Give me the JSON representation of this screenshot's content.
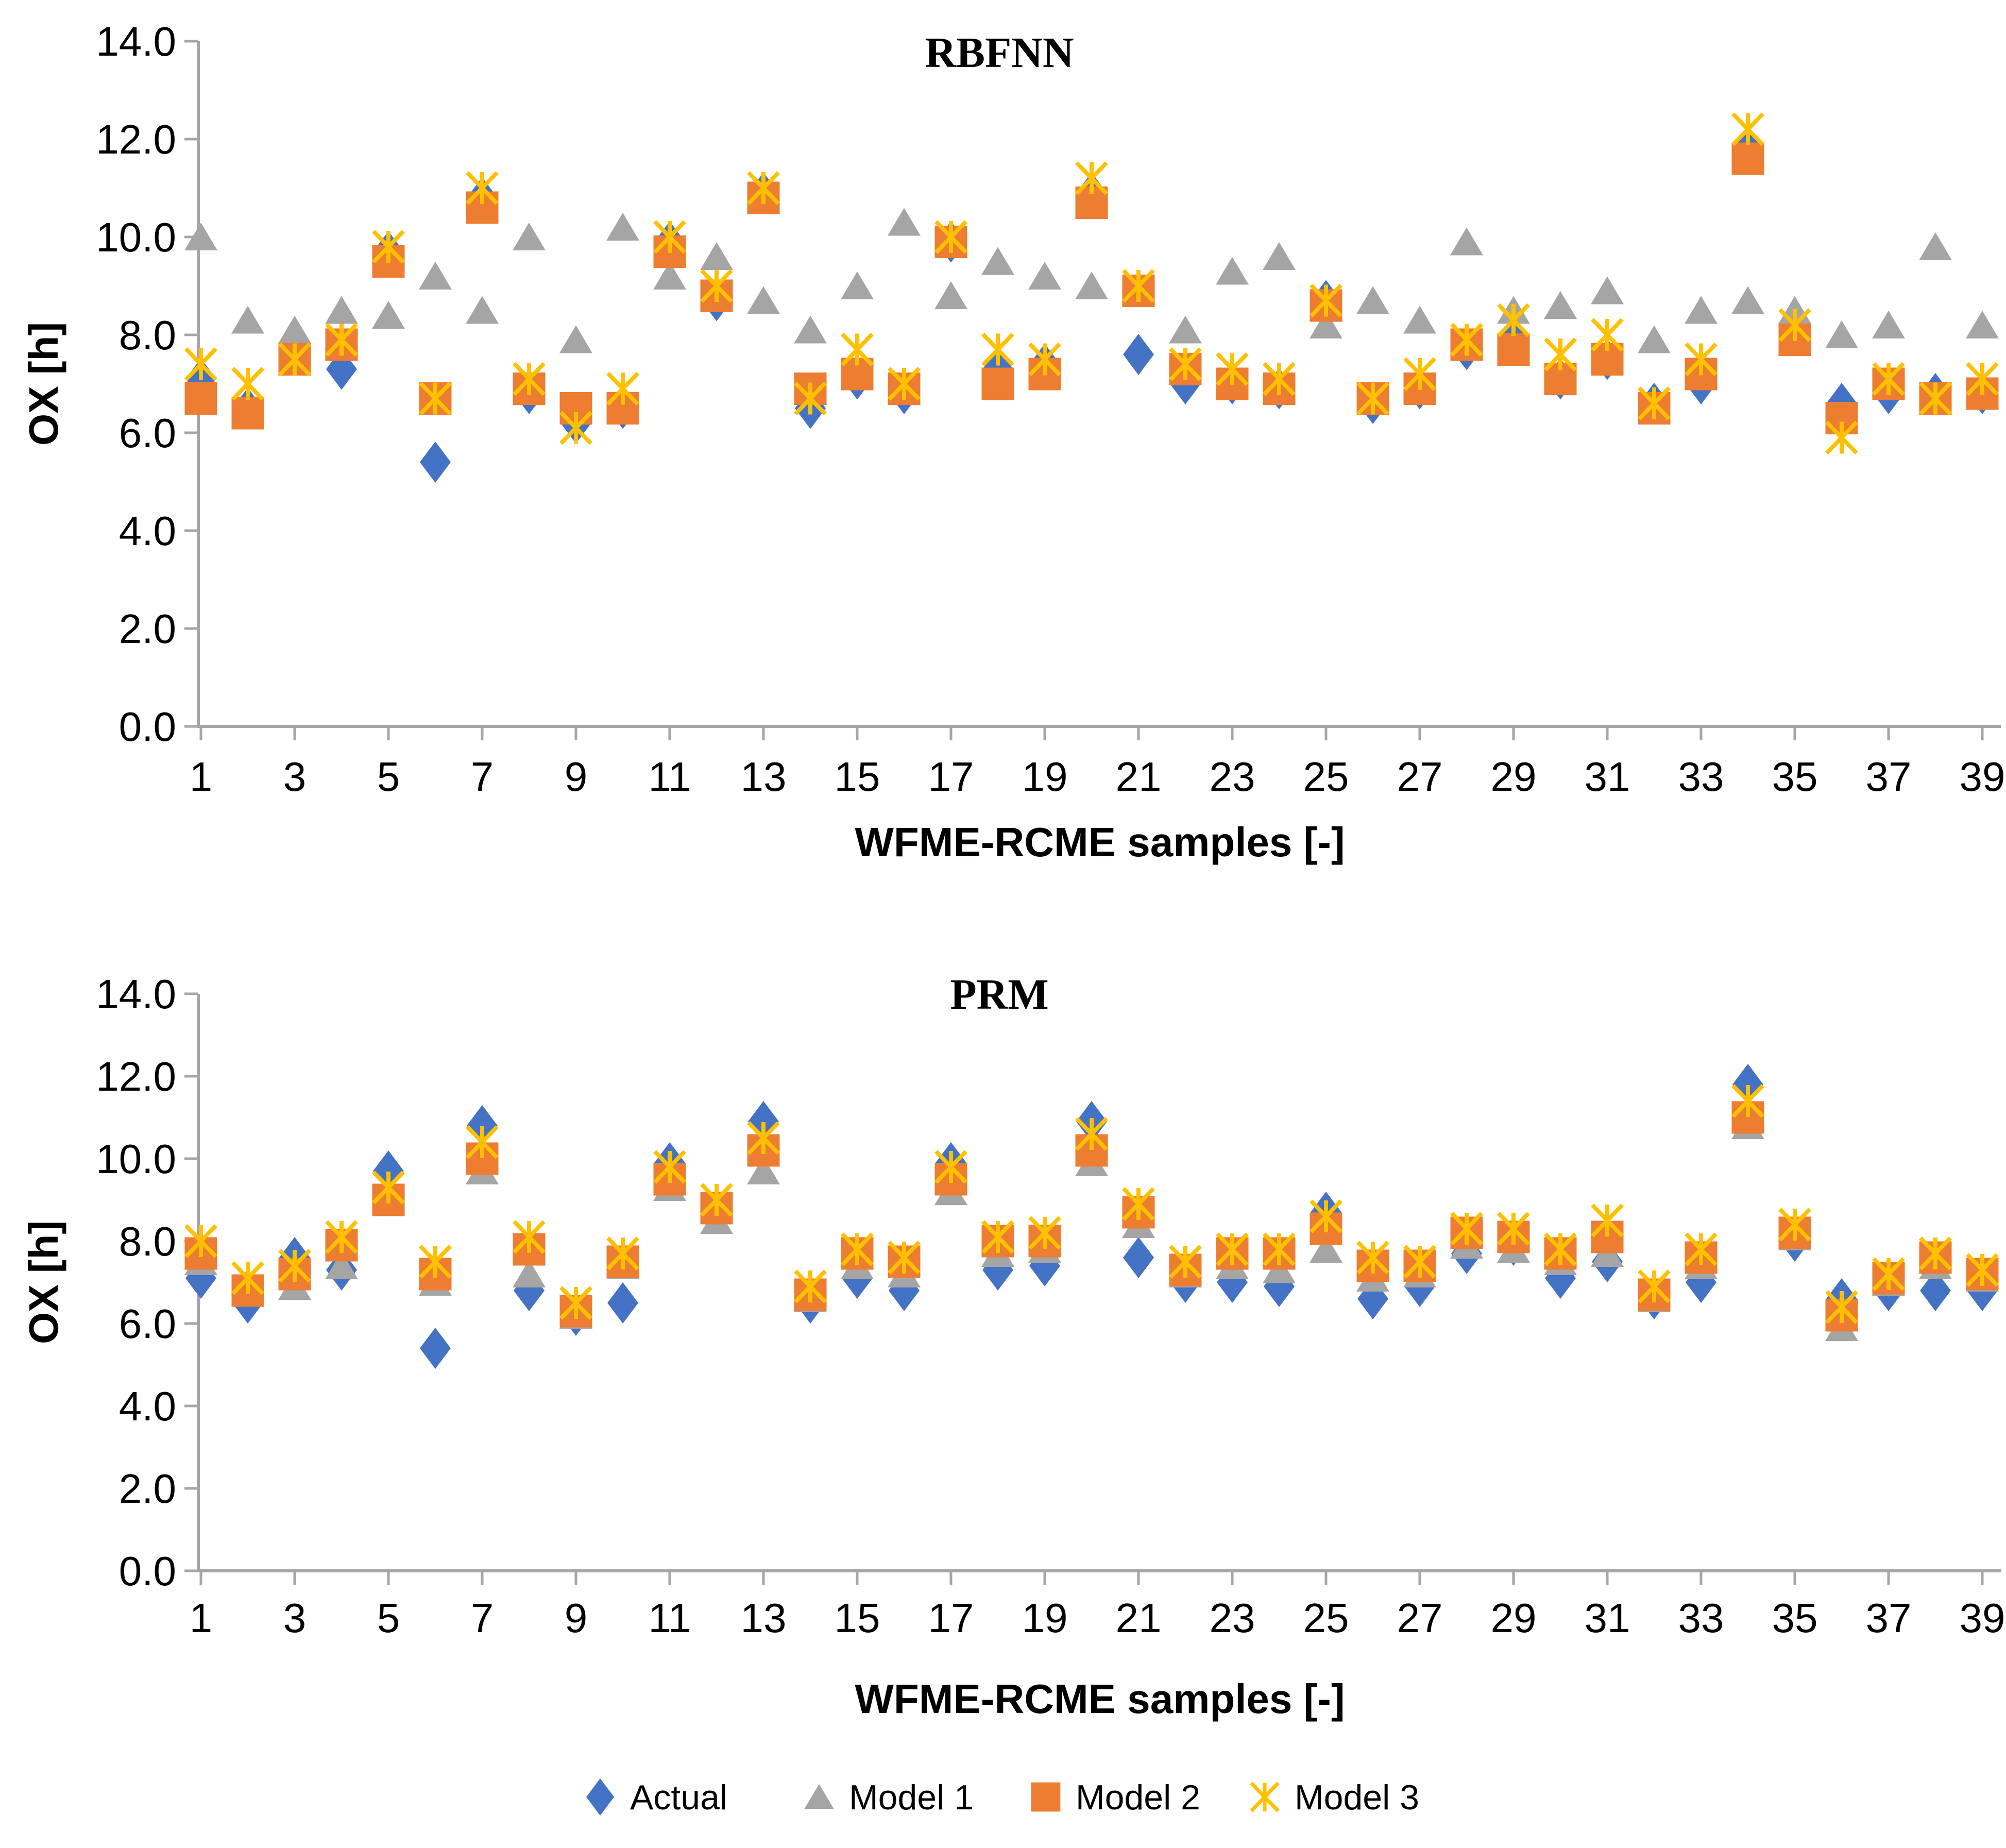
{
  "figure": {
    "background": "#ffffff",
    "axis_color": "#A6A6A6",
    "text_color": "#000000"
  },
  "legend": {
    "items": [
      {
        "label": "Actual",
        "marker": "diamond",
        "color": "#4472C4"
      },
      {
        "label": "Model 1",
        "marker": "triangle",
        "color": "#A5A5A5"
      },
      {
        "label": "Model 2",
        "marker": "square",
        "color": "#ED7D31"
      },
      {
        "label": "Model 3",
        "marker": "asterisk",
        "color": "#FFC000"
      }
    ]
  },
  "chart_data": [
    {
      "type": "scatter",
      "id": "rbfnn",
      "title": "RBFNN",
      "xlabel": "WFME-RCME samples [-]",
      "ylabel": "OX [h]",
      "ylim": [
        0.0,
        14.0
      ],
      "ytick_values": [
        0,
        2,
        4,
        6,
        8,
        10,
        12,
        14
      ],
      "ytick_labels": [
        "0.0",
        "2.0",
        "4.0",
        "6.0",
        "8.0",
        "10.0",
        "12.0",
        "14.0"
      ],
      "xtick_values": [
        1,
        3,
        5,
        7,
        9,
        11,
        13,
        15,
        17,
        19,
        21,
        23,
        25,
        27,
        29,
        31,
        33,
        35,
        37,
        39
      ],
      "xtick_labels": [
        "1",
        "3",
        "5",
        "7",
        "9",
        "11",
        "13",
        "15",
        "17",
        "19",
        "21",
        "23",
        "25",
        "27",
        "29",
        "31",
        "33",
        "35",
        "37",
        "39"
      ],
      "x": [
        1,
        2,
        3,
        4,
        5,
        6,
        7,
        8,
        9,
        10,
        11,
        12,
        13,
        14,
        15,
        16,
        17,
        18,
        19,
        20,
        21,
        22,
        23,
        24,
        25,
        26,
        27,
        28,
        29,
        30,
        31,
        32,
        33,
        34,
        35,
        36,
        37,
        38,
        39
      ],
      "grid": false,
      "series": [
        {
          "name": "Actual",
          "marker": "diamond",
          "color": "#4472C4",
          "values": [
            7.1,
            6.5,
            7.6,
            7.3,
            9.7,
            5.4,
            10.8,
            6.8,
            6.2,
            6.5,
            9.9,
            8.7,
            10.9,
            6.5,
            7.1,
            6.8,
            9.9,
            7.3,
            7.4,
            10.9,
            7.6,
            7.0,
            7.0,
            6.9,
            8.7,
            6.6,
            6.9,
            7.7,
            7.9,
            7.1,
            7.5,
            6.6,
            7.0,
            11.8,
            8.0,
            6.6,
            6.8,
            6.8,
            6.8
          ]
        },
        {
          "name": "Model 1",
          "marker": "triangle",
          "color": "#A5A5A5",
          "values": [
            10.0,
            8.3,
            8.1,
            8.5,
            8.4,
            9.2,
            8.5,
            10.0,
            7.9,
            10.2,
            9.2,
            9.6,
            8.7,
            8.1,
            9.0,
            10.3,
            8.8,
            9.5,
            9.2,
            9.0,
            8.9,
            8.1,
            9.3,
            9.6,
            8.2,
            8.7,
            8.3,
            9.9,
            8.5,
            8.6,
            8.9,
            7.9,
            8.5,
            8.7,
            8.5,
            8.0,
            8.2,
            9.8,
            8.2
          ]
        },
        {
          "name": "Model 2",
          "marker": "square",
          "color": "#ED7D31",
          "values": [
            6.7,
            6.4,
            7.5,
            7.8,
            9.5,
            6.7,
            10.6,
            6.9,
            6.5,
            6.5,
            9.7,
            8.8,
            10.8,
            6.9,
            7.2,
            6.9,
            9.9,
            7.0,
            7.2,
            10.7,
            8.9,
            7.3,
            7.0,
            6.9,
            8.6,
            6.7,
            6.9,
            7.8,
            7.7,
            7.1,
            7.5,
            6.5,
            7.2,
            11.6,
            7.9,
            6.3,
            7.0,
            6.7,
            6.8
          ]
        },
        {
          "name": "Model 3",
          "marker": "asterisk",
          "color": "#FFC000",
          "values": [
            7.4,
            7.0,
            7.5,
            7.9,
            9.8,
            6.7,
            11.0,
            7.1,
            6.1,
            6.9,
            10.0,
            9.0,
            11.0,
            6.7,
            7.7,
            7.0,
            10.0,
            7.7,
            7.5,
            11.2,
            9.0,
            7.4,
            7.3,
            7.1,
            8.7,
            6.7,
            7.2,
            7.9,
            8.3,
            7.6,
            8.0,
            6.6,
            7.5,
            12.2,
            8.2,
            5.9,
            7.1,
            6.7,
            7.1
          ]
        }
      ]
    },
    {
      "type": "scatter",
      "id": "prm",
      "title": "PRM",
      "xlabel": "WFME-RCME samples [-]",
      "ylabel": "OX [h]",
      "ylim": [
        0.0,
        14.0
      ],
      "ytick_values": [
        0,
        2,
        4,
        6,
        8,
        10,
        12,
        14
      ],
      "ytick_labels": [
        "0.0",
        "2.0",
        "4.0",
        "6.0",
        "8.0",
        "10.0",
        "12.0",
        "14.0"
      ],
      "xtick_values": [
        1,
        3,
        5,
        7,
        9,
        11,
        13,
        15,
        17,
        19,
        21,
        23,
        25,
        27,
        29,
        31,
        33,
        35,
        37,
        39
      ],
      "xtick_labels": [
        "1",
        "3",
        "5",
        "7",
        "9",
        "11",
        "13",
        "15",
        "17",
        "19",
        "21",
        "23",
        "25",
        "27",
        "29",
        "31",
        "33",
        "35",
        "37",
        "39"
      ],
      "x": [
        1,
        2,
        3,
        4,
        5,
        6,
        7,
        8,
        9,
        10,
        11,
        12,
        13,
        14,
        15,
        16,
        17,
        18,
        19,
        20,
        21,
        22,
        23,
        24,
        25,
        26,
        27,
        28,
        29,
        30,
        31,
        32,
        33,
        34,
        35,
        36,
        37,
        38,
        39
      ],
      "grid": false,
      "series": [
        {
          "name": "Actual",
          "marker": "diamond",
          "color": "#4472C4",
          "values": [
            7.1,
            6.5,
            7.6,
            7.3,
            9.7,
            5.4,
            10.8,
            6.8,
            6.2,
            6.5,
            9.9,
            8.7,
            10.9,
            6.5,
            7.1,
            6.8,
            9.9,
            7.3,
            7.4,
            10.9,
            7.6,
            7.0,
            7.0,
            6.9,
            8.7,
            6.6,
            6.9,
            7.7,
            7.9,
            7.1,
            7.5,
            6.6,
            7.0,
            11.8,
            8.0,
            6.6,
            6.8,
            6.8,
            6.8
          ]
        },
        {
          "name": "Model 1",
          "marker": "triangle",
          "color": "#A5A5A5",
          "values": [
            7.5,
            7.0,
            6.9,
            7.4,
            9.1,
            7.0,
            9.7,
            7.2,
            6.2,
            7.4,
            9.3,
            8.5,
            9.7,
            6.6,
            7.4,
            7.2,
            9.2,
            7.7,
            7.8,
            9.9,
            8.4,
            7.2,
            7.4,
            7.3,
            7.8,
            7.1,
            7.2,
            7.9,
            7.8,
            7.5,
            7.7,
            6.6,
            7.4,
            10.8,
            8.1,
            5.9,
            7.0,
            7.4,
            7.1
          ]
        },
        {
          "name": "Model 2",
          "marker": "square",
          "color": "#ED7D31",
          "values": [
            7.7,
            6.8,
            7.2,
            7.9,
            9.0,
            7.2,
            10.0,
            7.8,
            6.3,
            7.5,
            9.5,
            8.8,
            10.2,
            6.7,
            7.7,
            7.5,
            9.5,
            8.0,
            8.0,
            10.2,
            8.7,
            7.3,
            7.7,
            7.7,
            8.3,
            7.4,
            7.4,
            8.2,
            8.1,
            7.7,
            8.1,
            6.7,
            7.6,
            11.0,
            8.2,
            6.2,
            7.1,
            7.6,
            7.2
          ]
        },
        {
          "name": "Model 3",
          "marker": "asterisk",
          "color": "#FFC000",
          "values": [
            8.0,
            7.1,
            7.4,
            8.1,
            9.3,
            7.5,
            10.4,
            8.1,
            6.5,
            7.7,
            9.8,
            9.0,
            10.5,
            6.9,
            7.8,
            7.6,
            9.8,
            8.1,
            8.2,
            10.6,
            8.9,
            7.5,
            7.8,
            7.8,
            8.6,
            7.6,
            7.5,
            8.3,
            8.3,
            7.8,
            8.5,
            6.9,
            7.8,
            11.4,
            8.4,
            6.4,
            7.2,
            7.7,
            7.3
          ]
        }
      ]
    }
  ]
}
